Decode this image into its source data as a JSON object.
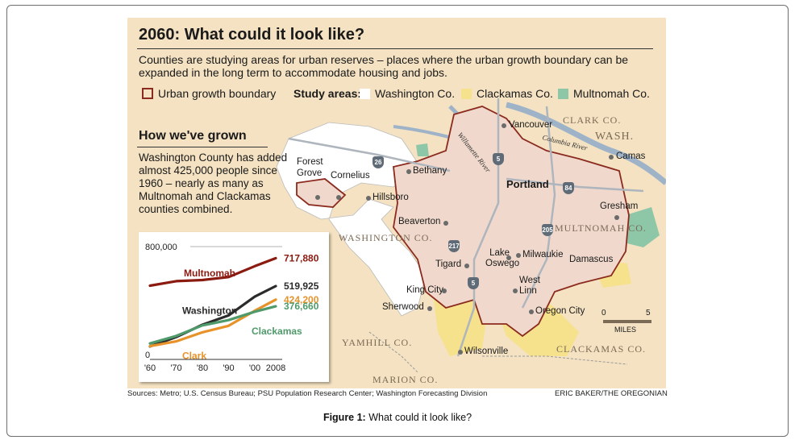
{
  "title": "2060: What could it look like?",
  "subtitle": "Counties are studying areas for urban reserves – places where the urban growth boundary can be expanded in the long term to accommodate housing and jobs.",
  "legend": {
    "ugb": "Urban growth boundary",
    "study_label": "Study areas:",
    "washington": "Washington Co.",
    "clackamas": "Clackamas Co.",
    "multnomah": "Multnomah Co."
  },
  "colors": {
    "panel": "#f4e2c2",
    "ugb": "#8b2b1f",
    "washington": "#ffffff",
    "clackamas": "#f6e18c",
    "multnomah": "#8dc7a8",
    "urban_fill": "#f0d9cc",
    "river": "#9fb3c8"
  },
  "how": {
    "heading": "How we've grown",
    "text": "Washington County has added almost 425,000 people since 1960 – nearly as many as Multnomah and Clackamas counties combined."
  },
  "map_labels": {
    "vancouver": "Vancouver",
    "clark_co": "CLARK CO.",
    "wash": "WASH.",
    "columbia_river": "Columbia River",
    "camas": "Camas",
    "willamette_river": "Willamette River",
    "forest_grove": "Forest Grove",
    "cornelius": "Cornelius",
    "bethany": "Bethany",
    "portland": "Portland",
    "hillsboro": "Hillsboro",
    "gresham": "Gresham",
    "beaverton": "Beaverton",
    "washington_co": "WASHINGTON CO.",
    "multnomah_co": "MULTNOMAH CO.",
    "lake_oswego": "Lake Oswego",
    "milwaukie": "Milwaukie",
    "damascus": "Damascus",
    "tigard": "Tigard",
    "king_city": "King City",
    "west_linn": "West Linn",
    "sherwood": "Sherwood",
    "oregon_city": "Oregon City",
    "yamhill_co": "YAMHILL CO.",
    "wilsonville": "Wilsonville",
    "clackamas_co": "CLACKAMAS CO.",
    "marion_co": "MARION CO.",
    "i26": "26",
    "i5a": "5",
    "i84": "84",
    "i205": "205",
    "i217": "217",
    "i5b": "5"
  },
  "scale": {
    "zero": "0",
    "five": "5",
    "unit": "MILES"
  },
  "chart_data": {
    "type": "line",
    "x": [
      1960,
      1970,
      1980,
      1990,
      2000,
      2008
    ],
    "xticks": [
      "'60",
      "'70",
      "'80",
      "'90",
      "'00",
      "2008"
    ],
    "yticks": [
      "800,000",
      "0"
    ],
    "ylim": [
      0,
      800000
    ],
    "series": [
      {
        "name": "Multnomah",
        "color": "#8b1a10",
        "values": [
          523000,
          555000,
          563000,
          584000,
          661000,
          717880
        ],
        "end_label": "717,880"
      },
      {
        "name": "Washington",
        "color": "#2b2b2b",
        "values": [
          92000,
          158000,
          246000,
          312000,
          445000,
          519925
        ],
        "end_label": "519,925"
      },
      {
        "name": "Clark",
        "color": "#e8922a",
        "values": [
          94000,
          128000,
          192000,
          238000,
          345000,
          424200
        ],
        "end_label": "424,200"
      },
      {
        "name": "Clackamas",
        "color": "#4f9a6a",
        "values": [
          113000,
          166000,
          241000,
          279000,
          338000,
          376660
        ],
        "end_label": "376,660"
      }
    ]
  },
  "footer": {
    "sources": "Sources: Metro; U.S. Census Bureau; PSU Population Research Center; Washington Forecasting Division",
    "credit": "ERIC BAKER/THE OREGONIAN"
  },
  "caption": {
    "label": "Figure 1:",
    "text": " What could it look like?"
  }
}
